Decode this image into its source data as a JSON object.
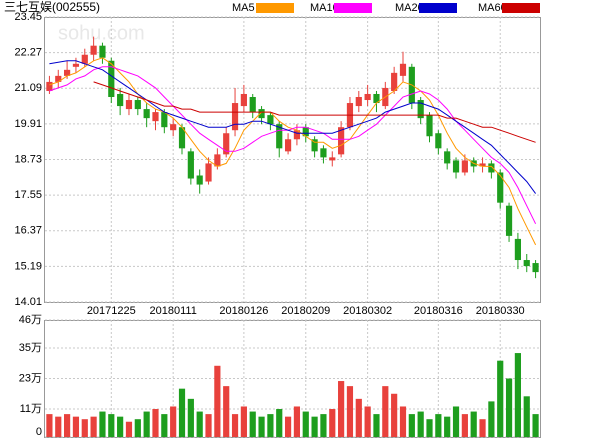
{
  "chart_data": {
    "type": "candlestick",
    "title": "三七互娱(002555)",
    "watermark": "sohu.com",
    "categories": [
      null,
      null,
      null,
      null,
      null,
      null,
      null,
      "20171225",
      null,
      null,
      null,
      null,
      null,
      null,
      "20180111",
      null,
      null,
      null,
      null,
      null,
      null,
      null,
      "20180126",
      null,
      null,
      null,
      null,
      null,
      null,
      "20180209",
      null,
      null,
      null,
      null,
      null,
      null,
      "20180302",
      null,
      null,
      null,
      null,
      null,
      null,
      null,
      "20180316",
      null,
      null,
      null,
      null,
      null,
      null,
      "20180330",
      null,
      null,
      null,
      null
    ],
    "open": [
      21.0,
      21.3,
      21.5,
      21.8,
      21.9,
      22.2,
      22.5,
      22.0,
      20.9,
      20.4,
      20.7,
      20.4,
      20.0,
      20.3,
      19.7,
      19.8,
      19.0,
      18.2,
      18.0,
      18.5,
      18.9,
      19.7,
      20.5,
      20.8,
      20.4,
      20.2,
      19.9,
      19.0,
      19.4,
      19.8,
      19.4,
      19.1,
      18.7,
      18.9,
      19.8,
      20.5,
      20.7,
      20.9,
      20.5,
      21.0,
      21.5,
      21.8,
      20.7,
      20.2,
      19.6,
      19.0,
      18.7,
      18.3,
      18.7,
      18.5,
      18.6,
      18.3,
      17.2,
      16.1,
      15.4,
      15.3
    ],
    "high": [
      21.5,
      21.7,
      22.0,
      22.1,
      22.4,
      22.8,
      22.6,
      22.1,
      21.1,
      20.9,
      20.8,
      20.6,
      20.4,
      20.4,
      20.1,
      19.9,
      19.1,
      18.4,
      18.8,
      19.1,
      19.8,
      21.1,
      21.2,
      20.9,
      20.5,
      20.3,
      20.0,
      19.6,
      19.9,
      19.9,
      19.5,
      19.2,
      19.0,
      20.0,
      20.8,
      21.0,
      21.2,
      21.0,
      21.3,
      21.8,
      22.3,
      21.9,
      20.8,
      20.3,
      19.7,
      19.1,
      18.8,
      18.9,
      18.8,
      18.8,
      18.7,
      18.4,
      17.3,
      16.3,
      15.6,
      15.4
    ],
    "low": [
      20.9,
      21.1,
      21.4,
      21.6,
      21.8,
      22.0,
      21.9,
      20.6,
      20.2,
      20.2,
      20.2,
      19.8,
      19.7,
      19.6,
      19.5,
      18.9,
      17.9,
      17.6,
      17.9,
      18.4,
      18.8,
      19.5,
      20.3,
      20.1,
      19.9,
      19.7,
      18.8,
      18.9,
      19.2,
      19.3,
      18.8,
      18.6,
      18.5,
      18.8,
      19.7,
      20.3,
      20.5,
      20.3,
      20.4,
      20.9,
      21.3,
      20.4,
      19.9,
      19.3,
      18.9,
      18.4,
      18.1,
      18.2,
      18.3,
      18.3,
      18.1,
      17.1,
      16.0,
      15.1,
      15.0,
      14.8
    ],
    "close": [
      21.3,
      21.5,
      21.7,
      21.9,
      22.2,
      22.5,
      22.1,
      20.8,
      20.5,
      20.7,
      20.4,
      20.1,
      20.3,
      19.8,
      19.9,
      19.1,
      18.1,
      17.9,
      18.6,
      18.9,
      19.6,
      20.6,
      20.9,
      20.3,
      20.1,
      19.9,
      19.1,
      19.4,
      19.7,
      19.5,
      19.0,
      18.8,
      18.8,
      19.8,
      20.6,
      20.8,
      20.9,
      20.6,
      21.1,
      21.6,
      21.9,
      20.6,
      20.1,
      19.5,
      19.1,
      18.6,
      18.3,
      18.7,
      18.5,
      18.6,
      18.3,
      17.3,
      16.2,
      15.4,
      15.2,
      15.0
    ],
    "up_color": "#e8413c",
    "down_color": "#1e9e1e",
    "series": [
      {
        "name": "MA5",
        "color": "#ff9900",
        "values": [
          21.2,
          21.3,
          21.5,
          21.6,
          21.8,
          22.0,
          22.1,
          21.9,
          21.6,
          21.3,
          20.9,
          20.6,
          20.4,
          20.3,
          20.1,
          19.8,
          19.4,
          19.0,
          18.7,
          18.5,
          18.6,
          19.1,
          19.7,
          20.0,
          20.3,
          20.3,
          20.0,
          19.8,
          19.7,
          19.5,
          19.3,
          19.3,
          19.1,
          19.2,
          19.4,
          19.8,
          20.2,
          20.6,
          20.8,
          21.0,
          21.3,
          21.2,
          21.0,
          20.7,
          20.2,
          19.6,
          19.1,
          18.8,
          18.6,
          18.5,
          18.5,
          18.2,
          17.8,
          17.1,
          16.5,
          15.9
        ]
      },
      {
        "name": "MA10",
        "color": "#ff00ff",
        "values": [
          21.0,
          21.1,
          21.2,
          21.4,
          21.5,
          21.7,
          21.8,
          21.8,
          21.7,
          21.6,
          21.5,
          21.3,
          21.1,
          20.8,
          20.5,
          20.2,
          19.9,
          19.6,
          19.4,
          19.2,
          19.0,
          19.0,
          19.1,
          19.3,
          19.5,
          19.6,
          19.7,
          19.7,
          19.8,
          19.8,
          19.7,
          19.6,
          19.4,
          19.4,
          19.4,
          19.5,
          19.7,
          19.9,
          20.2,
          20.5,
          20.8,
          20.9,
          21.0,
          20.9,
          20.7,
          20.4,
          20.0,
          19.7,
          19.4,
          19.1,
          18.8,
          18.6,
          18.3,
          17.8,
          17.2,
          16.6
        ]
      },
      {
        "name": "MA20",
        "color": "#0000cc",
        "values": [
          21.9,
          21.95,
          22.0,
          22.0,
          21.9,
          21.8,
          21.7,
          21.5,
          21.3,
          21.1,
          20.9,
          20.7,
          20.5,
          20.3,
          20.2,
          20.1,
          20.0,
          19.9,
          19.8,
          19.8,
          19.8,
          19.9,
          19.9,
          20.0,
          20.0,
          19.9,
          19.8,
          19.7,
          19.6,
          19.6,
          19.6,
          19.6,
          19.6,
          19.7,
          19.8,
          19.9,
          20.0,
          20.1,
          20.3,
          20.4,
          20.5,
          20.6,
          20.6,
          20.5,
          20.4,
          20.2,
          20.0,
          19.8,
          19.6,
          19.4,
          19.2,
          18.9,
          18.6,
          18.3,
          18.0,
          17.6
        ]
      },
      {
        "name": "MA60",
        "color": "#cc0000",
        "values": [
          null,
          null,
          null,
          null,
          null,
          21.3,
          21.2,
          21.1,
          21.0,
          20.9,
          20.8,
          20.7,
          20.6,
          20.5,
          20.5,
          20.4,
          20.4,
          20.3,
          20.3,
          20.3,
          20.3,
          20.3,
          20.3,
          20.3,
          20.3,
          20.3,
          20.2,
          20.2,
          20.2,
          20.2,
          20.2,
          20.2,
          20.2,
          20.2,
          20.2,
          20.2,
          20.2,
          20.2,
          20.2,
          20.2,
          20.2,
          20.2,
          20.2,
          20.2,
          20.2,
          20.1,
          20.1,
          20.0,
          19.9,
          19.8,
          19.8,
          19.7,
          19.6,
          19.5,
          19.4,
          19.3
        ]
      }
    ],
    "ylim": [
      14.01,
      23.45
    ],
    "yticks": [
      23.45,
      22.27,
      21.09,
      19.91,
      18.73,
      17.55,
      16.37,
      15.19,
      14.01
    ],
    "volume": [
      9,
      8,
      9,
      8,
      7,
      8,
      10,
      9,
      8,
      6,
      7,
      10,
      11,
      9,
      12,
      19,
      15,
      10,
      9,
      28,
      20,
      9,
      12,
      10,
      8,
      9,
      11,
      8,
      12,
      10,
      8,
      9,
      11,
      22,
      20,
      15,
      12,
      9,
      20,
      17,
      12,
      9,
      10,
      7,
      9,
      8,
      12,
      9,
      10,
      7,
      14,
      30,
      23,
      33,
      16,
      9
    ],
    "volume_ylim": [
      0,
      46
    ],
    "volume_yticks": [
      {
        "value": 46,
        "label": "46万"
      },
      {
        "value": 35,
        "label": "35万"
      },
      {
        "value": 23,
        "label": "23万"
      },
      {
        "value": 11,
        "label": "11万"
      },
      0
    ],
    "grid": true
  }
}
